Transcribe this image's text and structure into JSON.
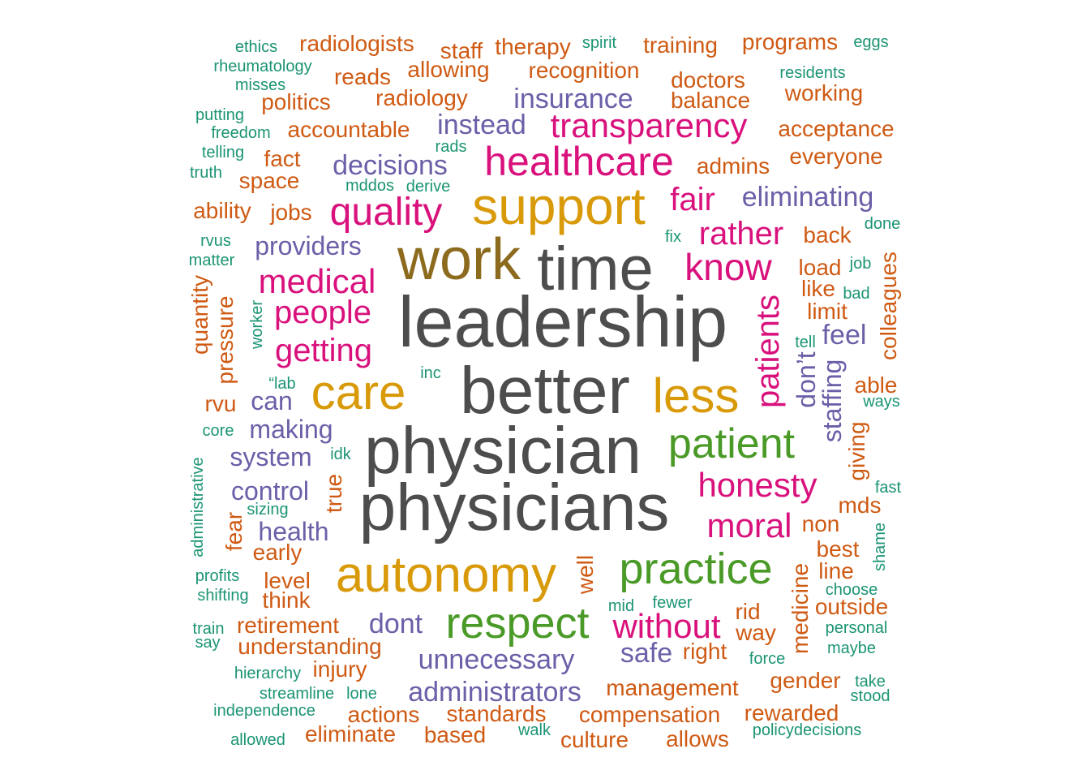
{
  "palette": {
    "gray": "#4d4d4d",
    "olive": "#8c6b1e",
    "gold": "#d99a09",
    "green": "#4a9a27",
    "magenta": "#d9117c",
    "purple": "#6960a8",
    "orange": "#cf5a13",
    "teal": "#1b9474"
  },
  "words": {
    "leadership": "leadership",
    "better": "better",
    "physician": "physician",
    "physicians": "physicians",
    "time": "time",
    "work": "work",
    "support": "support",
    "autonomy": "autonomy",
    "care": "care",
    "less": "less",
    "respect": "respect",
    "practice": "practice",
    "patient": "patient",
    "healthcare": "healthcare",
    "quality": "quality",
    "transparency": "transparency",
    "medical": "medical",
    "know": "know",
    "honesty": "honesty",
    "moral": "moral",
    "without": "without",
    "people": "people",
    "getting": "getting",
    "fair": "fair",
    "rather": "rather",
    "patients": "patients",
    "insurance": "insurance",
    "instead": "instead",
    "decisions": "decisions",
    "eliminating": "eliminating",
    "providers": "providers",
    "making": "making",
    "system": "system",
    "control": "control",
    "health": "health",
    "unnecessary": "unnecessary",
    "administrators": "administrators",
    "dont": "dont",
    "safe": "safe",
    "can": "can",
    "feel": "feel",
    "dont_apos": "don’t",
    "staffing": "staffing",
    "radiologists": "radiologists",
    "staff": "staff",
    "therapy": "therapy",
    "training": "training",
    "programs": "programs",
    "allowing": "allowing",
    "reads": "reads",
    "recognition": "recognition",
    "doctors": "doctors",
    "working": "working",
    "politics": "politics",
    "radiology": "radiology",
    "balance": "balance",
    "accountable": "accountable",
    "acceptance": "acceptance",
    "fact": "fact",
    "everyone": "everyone",
    "space": "space",
    "admins": "admins",
    "ability": "ability",
    "jobs": "jobs",
    "back": "back",
    "load": "load",
    "like": "like",
    "limit": "limit",
    "colleagues": "colleagues",
    "quantity": "quantity",
    "pressure": "pressure",
    "rvu": "rvu",
    "able": "able",
    "giving": "giving",
    "true": "true",
    "fear": "fear",
    "mds": "mds",
    "non": "non",
    "best": "best",
    "line": "line",
    "early": "early",
    "level": "level",
    "think": "think",
    "well": "well",
    "medicine": "medicine",
    "rid": "rid",
    "outside": "outside",
    "way": "way",
    "retirement": "retirement",
    "understanding": "understanding",
    "right": "right",
    "injury": "injury",
    "management": "management",
    "gender": "gender",
    "actions": "actions",
    "standards": "standards",
    "compensation": "compensation",
    "rewarded": "rewarded",
    "eliminate": "eliminate",
    "based": "based",
    "culture": "culture",
    "allows": "allows",
    "ethics": "ethics",
    "rheumatology": "rheumatology",
    "misses": "misses",
    "putting": "putting",
    "freedom": "freedom",
    "telling": "telling",
    "truth": "truth",
    "spirit": "spirit",
    "eggs": "eggs",
    "residents": "residents",
    "rads": "rads",
    "mddos": "mddos",
    "derive": "derive",
    "done": "done",
    "fix": "fix",
    "rvus": "rvus",
    "matter": "matter",
    "job": "job",
    "bad": "bad",
    "worker": "worker",
    "lab": "“lab",
    "inc": "inc",
    "tell": "tell",
    "ways": "ways",
    "core": "core",
    "idk": "idk",
    "administrative": "administrative",
    "sizing": "sizing",
    "fast": "fast",
    "shame": "shame",
    "profits": "profits",
    "shifting": "shifting",
    "choose": "choose",
    "mid": "mid",
    "fewer": "fewer",
    "train": "train",
    "say": "say",
    "personal": "personal",
    "maybe": "maybe",
    "force": "force",
    "hierarchy": "hierarchy",
    "take": "take",
    "stood": "stood",
    "streamline": "streamline",
    "lone": "lone",
    "independence": "independence",
    "allowed": "allowed",
    "walk": "walk",
    "policydecisions": "policydecisions"
  }
}
